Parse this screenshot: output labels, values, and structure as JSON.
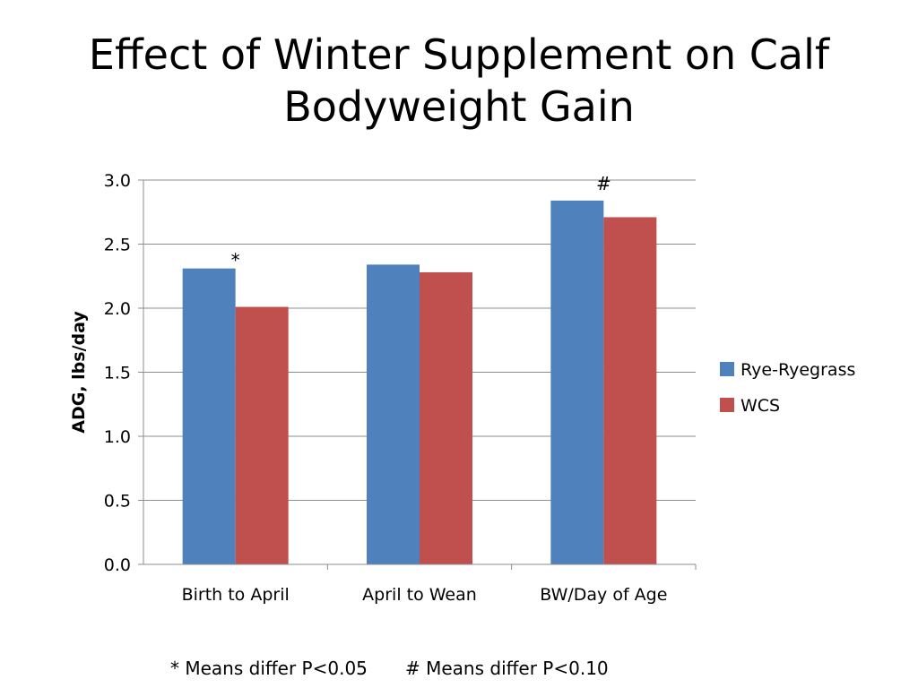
{
  "slide": {
    "title_line1": "Effect of Winter Supplement on Calf",
    "title_line2": "Bodyweight Gain"
  },
  "footnotes": {
    "star": "* Means differ P<0.05",
    "hash": "# Means differ P<0.10"
  },
  "chart_data": {
    "type": "bar",
    "title": "",
    "xlabel": "",
    "ylabel": "ADG, lbs/day",
    "ylim": [
      0,
      3.0
    ],
    "yticks": [
      "0.0",
      "0.5",
      "1.0",
      "1.5",
      "2.0",
      "2.5",
      "3.0"
    ],
    "grid": true,
    "legend_position": "right",
    "categories": [
      "Birth to April",
      "April to Wean",
      "BW/Day of Age"
    ],
    "series": [
      {
        "name": "Rye-Ryegrass",
        "color": "#4F81BD",
        "values": [
          2.31,
          2.34,
          2.84
        ]
      },
      {
        "name": "WCS",
        "color": "#C0504D",
        "values": [
          2.01,
          2.28,
          2.71
        ]
      }
    ],
    "annotations": [
      {
        "text": "*",
        "category": "Birth to April"
      },
      {
        "text": "#",
        "category": "BW/Day of Age"
      }
    ]
  }
}
